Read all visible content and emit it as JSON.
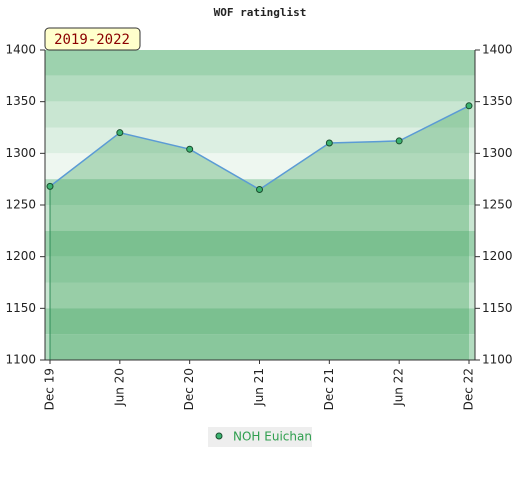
{
  "chart_data": {
    "type": "area",
    "title": "WOF ratinglist",
    "subtitle": "2019-2022",
    "categories": [
      "Dec 19",
      "Jun 20",
      "Dec 20",
      "Jun 21",
      "Dec 21",
      "Jun 22",
      "Dec 22"
    ],
    "series": [
      {
        "name": "NOH Euichan",
        "color": "#5b9bd5",
        "values": [
          1268,
          1320,
          1304,
          1265,
          1310,
          1312,
          1346
        ]
      }
    ],
    "ylim": [
      1100,
      1400
    ],
    "yticks": [
      1100,
      1150,
      1200,
      1250,
      1300,
      1350,
      1400
    ],
    "y2lim": [
      1100,
      1400
    ],
    "y2ticks": [
      1100,
      1150,
      1200,
      1250,
      1300,
      1350,
      1400
    ],
    "legend": "bottom"
  }
}
